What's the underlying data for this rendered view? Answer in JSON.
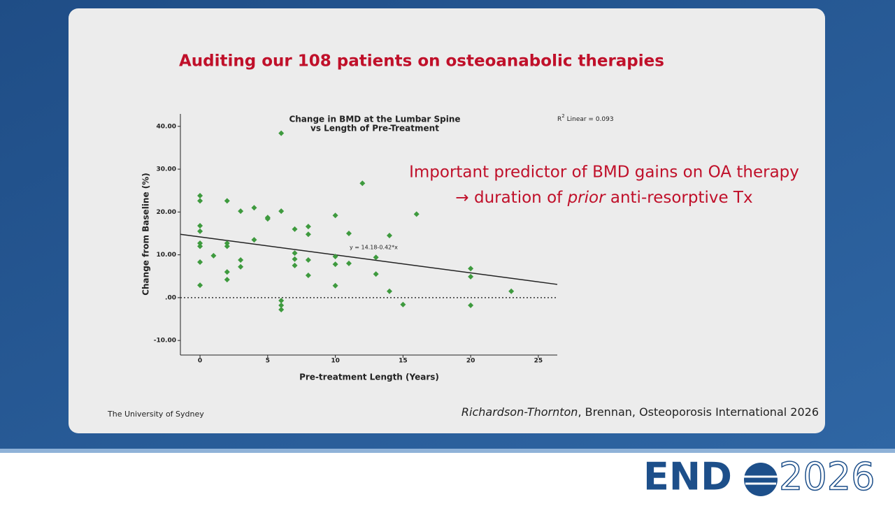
{
  "slide": {
    "title": "Auditing our 108 patients on osteoanabolic therapies",
    "statement": {
      "line1": "Important predictor of BMD gains on OA therapy",
      "line2": [
        "→ duration of ",
        "prior",
        " anti-resorptive Tx"
      ]
    },
    "citation": [
      "Richardson-Thornton",
      ", Brennan, Osteoporosis International 2026"
    ],
    "footer": "The University of Sydney"
  },
  "logo": {
    "left": "END",
    "right": "2026"
  },
  "chart_data": {
    "type": "scatter",
    "title": [
      "Change in BMD at the Lumbar Spine",
      "vs Length of Pre-Treatment"
    ],
    "x_label": "Pre-treatment Length (Years)",
    "y_label": "Change from Baseline (%)",
    "r2_label": {
      "base": "R",
      "sup": "2",
      "rest": " Linear = 0.093"
    },
    "equation": "y = 14.18-0.42*x",
    "trendline": {
      "intercept": 14.18,
      "slope": -0.42
    },
    "hline": 0,
    "color": "#3e9a3e",
    "x": [
      0,
      0,
      0,
      0,
      0,
      0,
      0,
      0,
      1,
      2,
      2,
      2,
      2,
      2,
      3,
      3,
      3,
      4,
      5,
      5,
      4,
      6,
      6,
      6,
      6,
      6,
      7,
      7,
      7,
      7,
      8,
      8,
      8,
      8,
      10,
      10,
      10,
      10,
      11,
      11,
      12,
      13,
      13,
      14,
      14,
      15,
      16,
      20,
      20,
      20,
      23
    ],
    "values": [
      23.8,
      22.6,
      16.8,
      15.5,
      12.7,
      12.0,
      8.3,
      2.9,
      9.8,
      22.6,
      12.7,
      12.0,
      6.0,
      4.2,
      20.2,
      8.8,
      7.2,
      21.0,
      18.7,
      18.4,
      13.5,
      38.4,
      20.2,
      -0.7,
      -1.8,
      -2.8,
      16.0,
      10.4,
      9.0,
      7.5,
      16.6,
      14.8,
      8.8,
      5.2,
      19.2,
      9.6,
      7.8,
      2.8,
      15.0,
      8.0,
      26.7,
      9.4,
      5.5,
      14.5,
      1.5,
      -1.6,
      19.5,
      6.8,
      4.9,
      -1.8,
      1.5
    ],
    "xlim": [
      -1.45,
      26.4
    ],
    "ylim": [
      -13.4,
      42.9
    ],
    "xticks": [
      0,
      5,
      10,
      15,
      20,
      25
    ],
    "yticks": [
      {
        "value": 40,
        "label": "40.00"
      },
      {
        "value": 30,
        "label": "30.00"
      },
      {
        "value": 20,
        "label": "20.00"
      },
      {
        "value": 10,
        "label": "10.00"
      },
      {
        "value": 0,
        "label": ".00"
      },
      {
        "value": -10,
        "label": "-10.00"
      }
    ]
  }
}
